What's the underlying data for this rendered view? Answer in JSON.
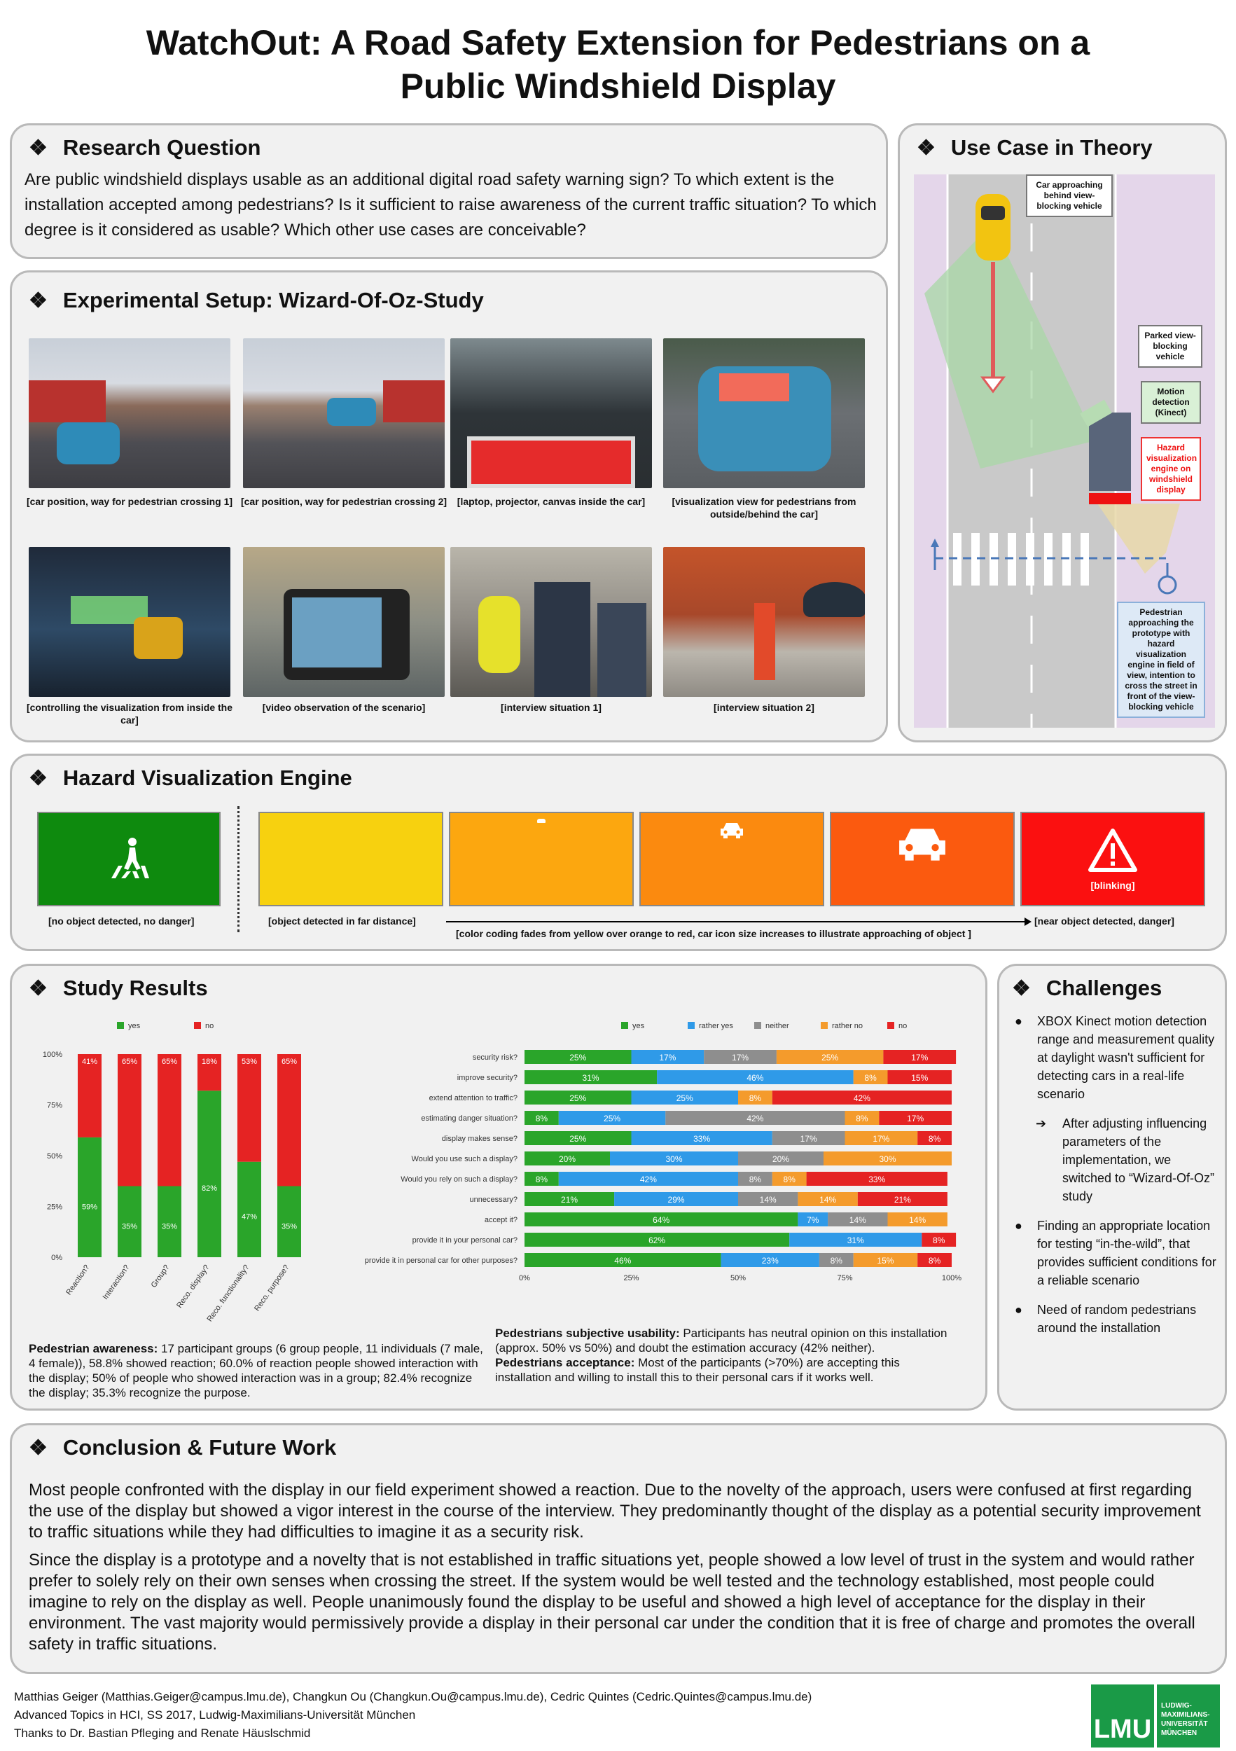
{
  "title": "WatchOut: A Road Safety Extension for Pedestrians on a Public Windshield Display",
  "research": {
    "heading": "Research Question",
    "text": "Are public windshield displays usable as an additional digital road safety warning sign? To which extent is the installation accepted among pedestrians? Is it sufficient to raise awareness of the current traffic situation? To which degree is it considered as usable? Which other use cases are conceivable?"
  },
  "usecase": {
    "heading": "Use Case in Theory",
    "labels": {
      "car": "Car approaching behind view-blocking vehicle",
      "parked": "Parked view-blocking vehicle",
      "motion": "Motion detection (Kinect)",
      "hazard": "Hazard visualization engine on windshield display",
      "pedestrian": "Pedestrian approaching the prototype with hazard visualization engine in field of view, intention to cross the street in front of the view-blocking vehicle"
    }
  },
  "setup": {
    "heading": "Experimental Setup: Wizard-Of-Oz-Study",
    "photos": [
      {
        "caption": "[car position, way for pedestrian crossing 1]",
        "icon": "street-photo"
      },
      {
        "caption": "[car position, way for pedestrian crossing 2]",
        "icon": "street-photo"
      },
      {
        "caption": "[laptop, projector, canvas inside the car]",
        "icon": "car-interior-photo"
      },
      {
        "caption": "[visualization view for pedestrians from outside/behind the car]",
        "icon": "car-photo"
      },
      {
        "caption": "[controlling the visualization from inside the car]",
        "icon": "car-photo"
      },
      {
        "caption": "[video observation of the scenario]",
        "icon": "camera-photo"
      },
      {
        "caption": "[interview situation 1]",
        "icon": "people-photo"
      },
      {
        "caption": "[interview situation 2]",
        "icon": "people-photo"
      }
    ]
  },
  "hazard": {
    "heading": "Hazard Visualization Engine",
    "states": [
      {
        "color": "#0e8a0e",
        "icon": "pedestrian-crossing-icon",
        "text": ""
      },
      {
        "color": "#f7d10f",
        "icon": "",
        "text": ""
      },
      {
        "color": "#fca70f",
        "icon": "car-icon-tiny",
        "text": ""
      },
      {
        "color": "#fb8a0f",
        "icon": "car-icon-small",
        "text": ""
      },
      {
        "color": "#fb5a0f",
        "icon": "car-icon-large",
        "text": ""
      },
      {
        "color": "#fb1010",
        "icon": "warning-icon",
        "text": "[blinking]"
      }
    ],
    "cap_none": "[no object detected, no danger]",
    "cap_far": "[object detected in far distance]",
    "cap_fade": "[color coding fades from yellow over orange to red, car icon size increases to illustrate approaching of object ]",
    "cap_near": "[near object detected, danger]"
  },
  "results": {
    "heading": "Study Results",
    "awareness_label": "Pedestrian awareness:",
    "awareness_text": " 17 participant groups (6 group people, 11 individuals (7 male, 4 female)), 58.8% showed reaction; 60.0% of reaction people showed interaction with the display; 50% of people who showed interaction was in a group; 82.4% recognize the display; 35.3% recognize the purpose.",
    "usability_label": "Pedestrians subjective usability:",
    "usability_text": " Participants has neutral opinion on this installation (approx. 50% vs 50%) and doubt the estimation accuracy (42% neither).",
    "acceptance_label": "Pedestrians acceptance:",
    "acceptance_text": " Most of the participants (>70%) are accepting this installation and willing to install this to their personal cars if it works well."
  },
  "challenges": {
    "heading": "Challenges",
    "items": [
      "XBOX Kinect motion detection range and measurement quality at daylight wasn't sufficient for detecting cars in a real-life scenario",
      "Finding an appropriate location for testing “in-the-wild”, that provides sufficient conditions for a reliable scenario",
      "Need of random pedestrians around the installation"
    ],
    "sub": "After adjusting influencing parameters of the implementation, we switched to “Wizard-Of-Oz” study"
  },
  "conclusion": {
    "heading": "Conclusion & Future Work",
    "p1": "Most people confronted with the display in our field experiment showed a reaction. Due to the novelty of the approach, users were confused at first regarding the use of the display but showed a vigor interest in the course of the interview. They predominantly thought of the display as a potential security improvement to traffic situations while they had difficulties to imagine it as a security risk.",
    "p2": "Since the display is a prototype and a novelty that is not established in traffic situations yet, people showed a low level of trust in the system and would rather prefer to solely rely on their own senses when crossing the street. If the system would be well tested and the technology established, most people could imagine to rely on the display as well. People unanimously found the display to be useful and showed a high level of acceptance for the display in their environment. The vast majority would permissively provide a display in their personal car under the condition that it is free of charge and promotes the overall safety in traffic situations."
  },
  "footer": {
    "line1": "Matthias Geiger (Matthias.Geiger@campus.lmu.de), Changkun Ou (Changkun.Ou@campus.lmu.de), Cedric Quintes (Cedric.Quintes@campus.lmu.de)",
    "line2": "Advanced Topics in HCI, SS 2017, Ludwig-Maximilians-Universität München",
    "line3": "Thanks to Dr. Bastian Pfleging and Renate Häuslschmid",
    "logo": "LMU",
    "logo_text": "LUDWIG-MAXIMILIANS-UNIVERSITÄT MÜNCHEN"
  },
  "chart_data": [
    {
      "type": "bar",
      "stacked": true,
      "categories": [
        "Reaction?",
        "Interaction?",
        "Group?",
        "Reco. display?",
        "Reco. functionality?",
        "Reco. purpose?"
      ],
      "series": [
        {
          "name": "yes",
          "color": "#2aa52a",
          "values": [
            59,
            35,
            35,
            82,
            47,
            35
          ]
        },
        {
          "name": "no",
          "color": "#e52323",
          "values": [
            41,
            65,
            65,
            18,
            53,
            65
          ]
        }
      ],
      "ylim": [
        0,
        100
      ],
      "yticks": [
        "0%",
        "25%",
        "50%",
        "75%",
        "100%"
      ],
      "legend": "top"
    },
    {
      "type": "bar",
      "orientation": "horizontal",
      "stacked": true,
      "categories": [
        "security risk?",
        "improve security?",
        "extend attention to traffic?",
        "estimating danger situation?",
        "display makes sense?",
        "Would you use such a display?",
        "Would you rely on such a display?",
        "unnecessary?",
        "accept it?",
        "provide it in your personal car?",
        "provide it in personal car for other purposes?"
      ],
      "series": [
        {
          "name": "yes",
          "color": "#2aa52a",
          "values": [
            25,
            31,
            25,
            8,
            25,
            20,
            8,
            21,
            64,
            62,
            46
          ]
        },
        {
          "name": "rather yes",
          "color": "#2f9ae8",
          "values": [
            17,
            46,
            25,
            25,
            33,
            30,
            42,
            29,
            7,
            31,
            23
          ]
        },
        {
          "name": "neither",
          "color": "#8e8e8e",
          "values": [
            17,
            0,
            0,
            42,
            17,
            20,
            8,
            14,
            14,
            0,
            8
          ]
        },
        {
          "name": "rather no",
          "color": "#f49b2c",
          "values": [
            25,
            8,
            8,
            8,
            17,
            30,
            8,
            14,
            14,
            0,
            15
          ]
        },
        {
          "name": "no",
          "color": "#e52323",
          "values": [
            17,
            15,
            42,
            17,
            8,
            0,
            33,
            21,
            0,
            8,
            8
          ]
        }
      ],
      "xlim": [
        0,
        100
      ],
      "xticks": [
        "0%",
        "25%",
        "50%",
        "75%",
        "100%"
      ],
      "legend": "top"
    }
  ]
}
